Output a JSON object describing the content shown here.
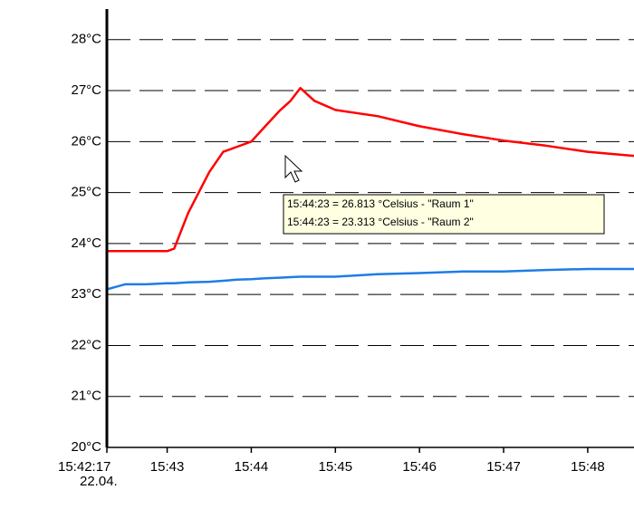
{
  "chart_data": {
    "type": "line",
    "x": [
      "15:42:17",
      "15:42:30",
      "15:42:45",
      "15:43:00",
      "15:43:05",
      "15:43:15",
      "15:43:30",
      "15:43:40",
      "15:43:50",
      "15:44:00",
      "15:44:10",
      "15:44:20",
      "15:44:28",
      "15:44:35",
      "15:44:45",
      "15:45:00",
      "15:45:30",
      "15:46:00",
      "15:46:30",
      "15:47:00",
      "15:47:30",
      "15:48:00",
      "15:48:33"
    ],
    "series": [
      {
        "name": "Raum 1",
        "color": "#ff0000",
        "values": [
          23.85,
          23.85,
          23.85,
          23.85,
          23.9,
          24.6,
          25.4,
          25.8,
          25.9,
          26.0,
          26.3,
          26.6,
          26.8,
          27.05,
          26.8,
          26.62,
          26.5,
          26.3,
          26.15,
          26.02,
          25.92,
          25.8,
          25.72
        ]
      },
      {
        "name": "Raum 2",
        "color": "#1e7de6",
        "values": [
          23.1,
          23.2,
          23.2,
          23.22,
          23.22,
          23.24,
          23.25,
          23.27,
          23.29,
          23.3,
          23.32,
          23.33,
          23.34,
          23.35,
          23.35,
          23.35,
          23.4,
          23.42,
          23.45,
          23.45,
          23.48,
          23.5,
          23.5
        ]
      }
    ],
    "xlim": [
      "15:42:17",
      "15:48:33"
    ],
    "xticks": [
      {
        "value": "15:42:17",
        "label": [
          "15:42:17",
          "22.04."
        ]
      },
      "15:43",
      "15:44",
      "15:45",
      "15:46",
      "15:47",
      "15:48"
    ],
    "ylim": [
      20,
      28.6
    ],
    "yticks": [
      {
        "value": 20,
        "label": "20°C"
      },
      {
        "value": 21,
        "label": "21°C"
      },
      {
        "value": 22,
        "label": "22°C"
      },
      {
        "value": 23,
        "label": "23°C"
      },
      {
        "value": 24,
        "label": "24°C"
      },
      {
        "value": 25,
        "label": "25°C"
      },
      {
        "value": 26,
        "label": "26°C"
      },
      {
        "value": 27,
        "label": "27°C"
      },
      {
        "value": 28,
        "label": "28°C"
      }
    ],
    "grid": true,
    "annotations": [
      "15:44:23 = 26.813 °Celsius - \"Raum 1\"",
      "15:44:23 = 23.313 °Celsius - \"Raum 2\""
    ]
  }
}
